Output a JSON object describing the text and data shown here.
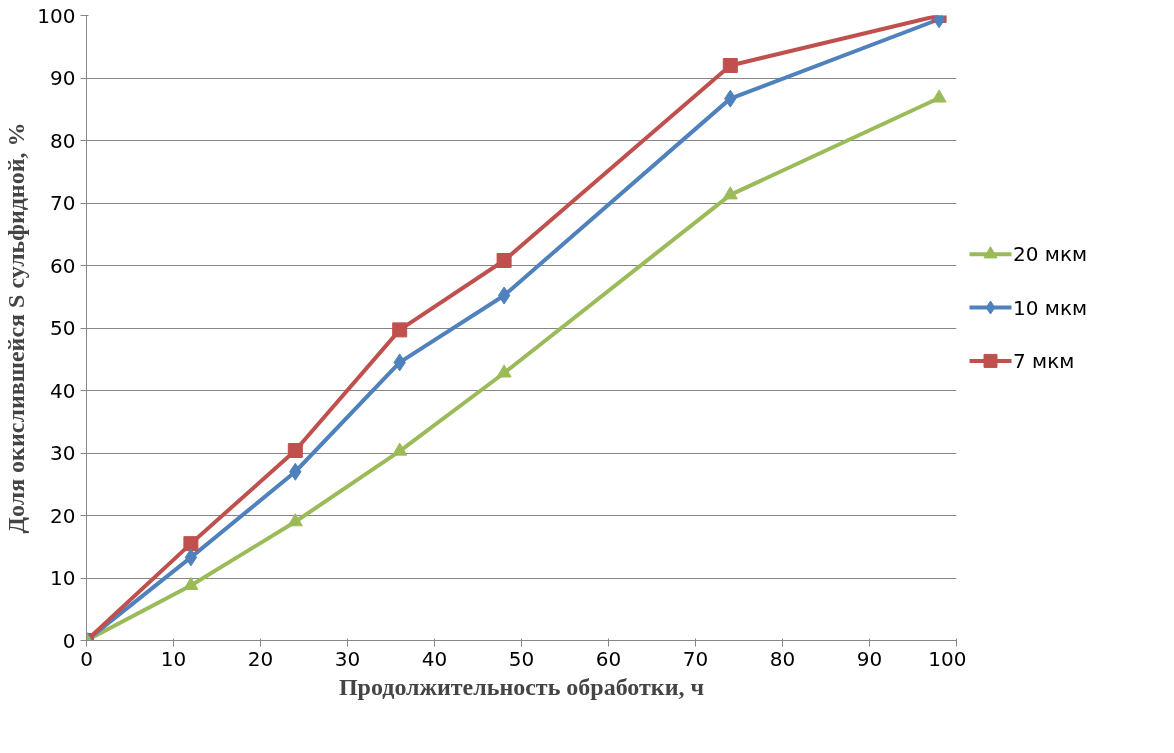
{
  "chart_data": {
    "type": "line",
    "xlabel": "Продолжительность обработки, ч",
    "ylabel": "Доля окислившейся S сульфидной, %",
    "x": [
      0,
      12,
      24,
      36,
      48,
      74,
      98
    ],
    "xlim": [
      0,
      100
    ],
    "xticks": [
      0,
      10,
      20,
      30,
      40,
      50,
      60,
      70,
      80,
      90,
      100
    ],
    "ylim": [
      0,
      100
    ],
    "yticks": [
      0,
      10,
      20,
      30,
      40,
      50,
      60,
      70,
      80,
      90,
      100
    ],
    "grid": "y",
    "legend": "right",
    "line_style": "solid",
    "series": [
      {
        "name": "20 мкм",
        "color": "#9bbb59",
        "marker": "triangle",
        "values": [
          0,
          8.8,
          19.0,
          30.3,
          42.8,
          71.3,
          86.8
        ]
      },
      {
        "name": "10 мкм",
        "color": "#4f81bd",
        "marker": "diamond",
        "values": [
          0,
          13.3,
          27.0,
          44.5,
          55.2,
          86.7,
          99.4
        ]
      },
      {
        "name": "7 мкм",
        "color": "#c0504d",
        "marker": "square",
        "values": [
          0,
          15.5,
          30.4,
          49.7,
          60.8,
          92.0,
          100
        ]
      }
    ]
  }
}
